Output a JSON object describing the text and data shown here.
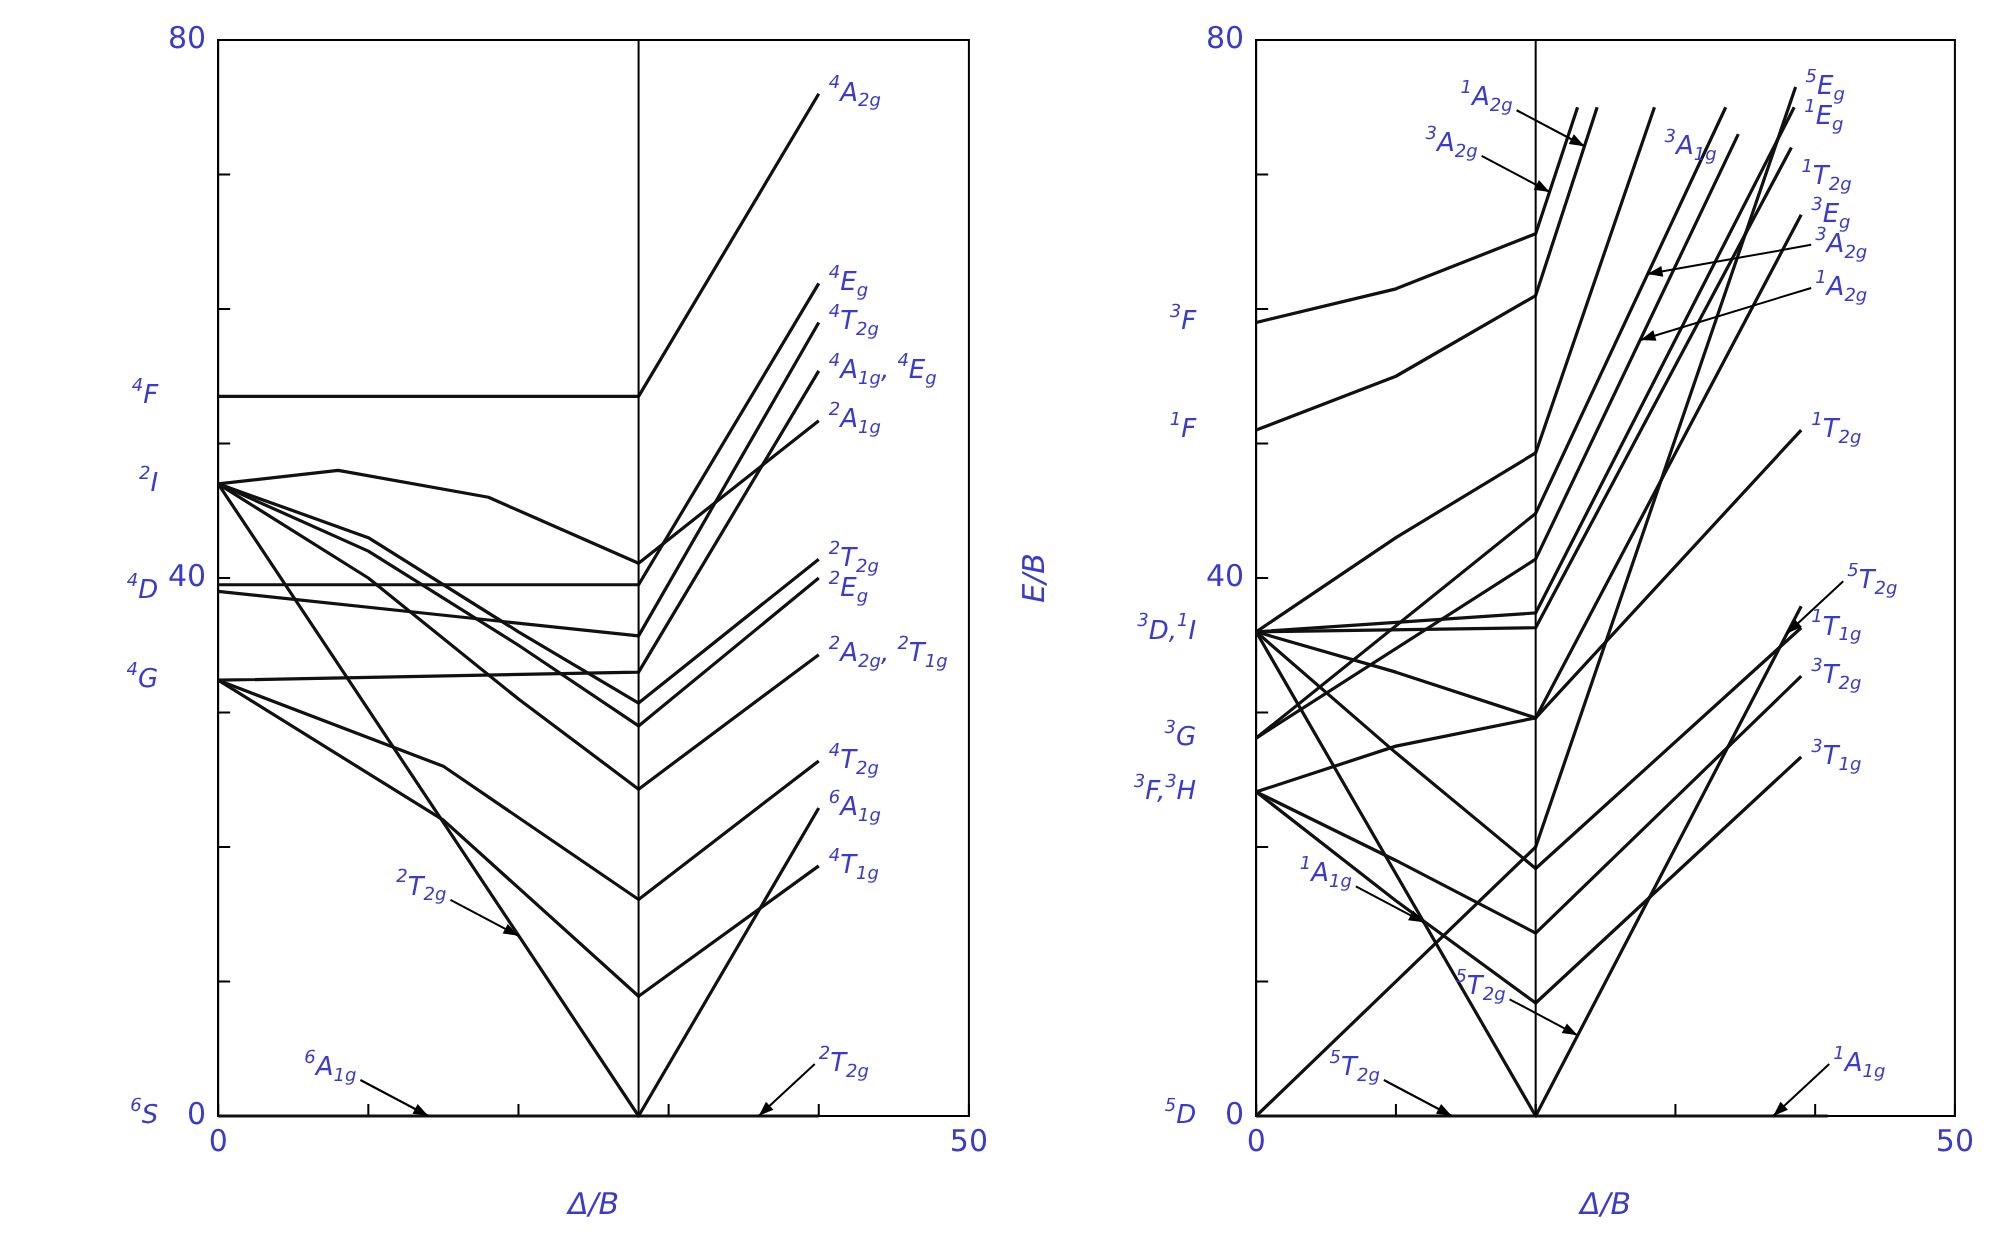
{
  "chart_data": [
    {
      "type": "line",
      "xlabel": "Δ/B",
      "xlim": [
        0,
        50
      ],
      "ylim": [
        0,
        80
      ],
      "xticks": [
        {
          "value": 0,
          "label": "0"
        },
        {
          "value": 10,
          "label": null
        },
        {
          "value": 20,
          "label": null
        },
        {
          "value": 30,
          "label": null
        },
        {
          "value": 40,
          "label": null
        },
        {
          "value": 50,
          "label": "50"
        }
      ],
      "yticks": [
        {
          "value": 0,
          "label": "0"
        },
        {
          "value": 10,
          "label": null
        },
        {
          "value": 20,
          "label": null
        },
        {
          "value": 30,
          "label": null
        },
        {
          "value": 40,
          "label": "40"
        },
        {
          "value": 50,
          "label": null
        },
        {
          "value": 60,
          "label": null
        },
        {
          "value": 70,
          "label": null
        },
        {
          "value": 80,
          "label": "80"
        }
      ],
      "marker": "none",
      "ref_lines": [
        {
          "axis": "x",
          "value": 28,
          "color": "#000000"
        }
      ],
      "series": [
        {
          "color": "#111111",
          "x": [
            0,
            28,
            40
          ],
          "values": [
            53.5,
            53.5,
            76
          ]
        },
        {
          "color": "#111111",
          "x": [
            0,
            8,
            18,
            28,
            40
          ],
          "values": [
            47,
            48,
            46,
            41.1,
            51.7
          ]
        },
        {
          "color": "#111111",
          "x": [
            0,
            28,
            40
          ],
          "values": [
            39.5,
            39.5,
            61.9
          ]
        },
        {
          "color": "#111111",
          "x": [
            0,
            28,
            40
          ],
          "values": [
            39,
            35.7,
            59
          ]
        },
        {
          "color": "#111111",
          "x": [
            0,
            28,
            40
          ],
          "values": [
            32.4,
            33,
            55.4
          ]
        },
        {
          "color": "#111111",
          "x": [
            0,
            10,
            20,
            28,
            40
          ],
          "values": [
            47,
            43,
            36,
            30.7,
            41.4
          ]
        },
        {
          "color": "#111111",
          "x": [
            0,
            10,
            20,
            28,
            40
          ],
          "values": [
            47,
            42,
            35,
            29,
            40
          ]
        },
        {
          "color": "#111111",
          "x": [
            0,
            10,
            20,
            28,
            40
          ],
          "values": [
            47,
            40,
            31,
            24.3,
            34.3
          ]
        },
        {
          "color": "#111111",
          "x": [
            0,
            15,
            28,
            40
          ],
          "values": [
            32.4,
            26,
            16.1,
            26.4
          ]
        },
        {
          "color": "#111111",
          "x": [
            0,
            15,
            28,
            40
          ],
          "values": [
            32.4,
            22,
            8.9,
            18.6
          ]
        },
        {
          "color": "#111111",
          "x": [
            0,
            28,
            40
          ],
          "values": [
            47,
            0,
            0
          ]
        },
        {
          "color": "#111111",
          "x": [
            0,
            28,
            40
          ],
          "values": [
            0,
            0,
            22.9
          ]
        }
      ],
      "annotations": [
        {
          "text": "$^{4}$F",
          "x": 0,
          "y": 53.5
        },
        {
          "text": "$^{2}$I",
          "x": 0,
          "y": 47
        },
        {
          "text": "$^{4}$D",
          "x": 0,
          "y": 39
        },
        {
          "text": "$^{4}$G",
          "x": 0,
          "y": 32.4
        },
        {
          "text": "$^{6}$S",
          "x": 0,
          "y": 0
        },
        {
          "text": "$^{4}$A$_{2g}$",
          "x": 40,
          "y": 76
        },
        {
          "text": "$^{4}$E$_{g}$",
          "x": 40,
          "y": 61.9
        },
        {
          "text": "$^{4}$T$_{2g}$",
          "x": 40,
          "y": 59
        },
        {
          "text": "$^{4}$A$_{1g}$, $^{4}$E$_{g}$",
          "x": 40,
          "y": 55.4
        },
        {
          "text": "$^{2}$A$_{1g}$",
          "x": 40,
          "y": 51.7
        },
        {
          "text": "$^{2}$T$_{2g}$",
          "x": 40,
          "y": 41.4
        },
        {
          "text": "$^{2}$E$_{g}$",
          "x": 40,
          "y": 40
        },
        {
          "text": "$^{2}$A$_{2g}$, $^{2}$T$_{1g}$",
          "x": 40,
          "y": 34.3
        },
        {
          "text": "$^{4}$T$_{2g}$",
          "x": 40,
          "y": 26.4
        },
        {
          "text": "$^{6}$A$_{1g}$",
          "x": 40,
          "y": 22.9
        },
        {
          "text": "$^{4}$T$_{1g}$",
          "x": 40,
          "y": 18.6
        },
        {
          "text": "$^{2}$T$_{2g}$",
          "x": 20,
          "y": 13.4
        },
        {
          "text": "$^{6}$A$_{1g}$",
          "x": 14,
          "y": 0
        },
        {
          "text": "$^{2}$T$_{2g}$",
          "x": 36,
          "y": 0
        }
      ]
    },
    {
      "type": "line",
      "xlabel": "Δ/B",
      "ylabel": "E/B",
      "xlim": [
        0,
        50
      ],
      "ylim": [
        0,
        80
      ],
      "xticks": [
        {
          "value": 0,
          "label": "0"
        },
        {
          "value": 10,
          "label": null
        },
        {
          "value": 20,
          "label": null
        },
        {
          "value": 30,
          "label": null
        },
        {
          "value": 40,
          "label": null
        },
        {
          "value": 50,
          "label": "50"
        }
      ],
      "yticks": [
        {
          "value": 0,
          "label": "0"
        },
        {
          "value": 10,
          "label": null
        },
        {
          "value": 20,
          "label": null
        },
        {
          "value": 30,
          "label": null
        },
        {
          "value": 40,
          "label": "40"
        },
        {
          "value": 50,
          "label": null
        },
        {
          "value": 60,
          "label": null
        },
        {
          "value": 70,
          "label": null
        },
        {
          "value": 80,
          "label": "80"
        }
      ],
      "marker": "none",
      "ref_lines": [
        {
          "axis": "x",
          "value": 20,
          "color": "#000000"
        }
      ],
      "series": [
        {
          "color": "#111111",
          "x": [
            0,
            10,
            20,
            23
          ],
          "values": [
            59,
            61.5,
            65.6,
            75
          ]
        },
        {
          "color": "#111111",
          "x": [
            0,
            10,
            20,
            24.4
          ],
          "values": [
            51,
            55,
            61,
            75
          ]
        },
        {
          "color": "#111111",
          "x": [
            0,
            10,
            20,
            28.5
          ],
          "values": [
            36,
            43,
            49.3,
            75
          ]
        },
        {
          "color": "#111111",
          "x": [
            0,
            20,
            33.6
          ],
          "values": [
            28.1,
            44.8,
            75
          ]
        },
        {
          "color": "#111111",
          "x": [
            0,
            20,
            34.5
          ],
          "values": [
            28.1,
            41.4,
            73
          ]
        },
        {
          "color": "#111111",
          "x": [
            0,
            20,
            38.6
          ],
          "values": [
            0,
            20,
            76.5
          ]
        },
        {
          "color": "#111111",
          "x": [
            0,
            20,
            38.5
          ],
          "values": [
            36,
            37.4,
            75
          ]
        },
        {
          "color": "#111111",
          "x": [
            0,
            20,
            38.3
          ],
          "values": [
            36,
            36.3,
            72
          ]
        },
        {
          "color": "#111111",
          "x": [
            0,
            10,
            20,
            39
          ],
          "values": [
            24.1,
            27.5,
            29.6,
            67
          ]
        },
        {
          "color": "#111111",
          "x": [
            0,
            10,
            20,
            39
          ],
          "values": [
            36,
            33,
            29.6,
            51
          ]
        },
        {
          "color": "#111111",
          "x": [
            0,
            10,
            20,
            39
          ],
          "values": [
            36,
            27,
            18.4,
            36.3
          ]
        },
        {
          "color": "#111111",
          "x": [
            0,
            10,
            20,
            39
          ],
          "values": [
            24.1,
            19,
            13.6,
            32.7
          ]
        },
        {
          "color": "#111111",
          "x": [
            0,
            10,
            20,
            39
          ],
          "values": [
            24.1,
            16,
            8.4,
            26.7
          ]
        },
        {
          "color": "#111111",
          "x": [
            0,
            20,
            40.9
          ],
          "values": [
            36,
            0,
            0
          ]
        },
        {
          "color": "#111111",
          "x": [
            0,
            20,
            39
          ],
          "values": [
            0,
            0,
            37.9
          ]
        }
      ],
      "annotations": [
        {
          "text": "$^{3}$F",
          "x": 0,
          "y": 59
        },
        {
          "text": "$^{1}$F",
          "x": 0,
          "y": 51
        },
        {
          "text": "$^{3}$D,$^{1}$I",
          "x": 0,
          "y": 36
        },
        {
          "text": "$^{3}$G",
          "x": 0,
          "y": 28.1
        },
        {
          "text": "$^{3}$F,$^{3}$H",
          "x": 0,
          "y": 24.1
        },
        {
          "text": "$^{5}$D",
          "x": 0,
          "y": 0
        },
        {
          "text": "$^{5}$E$_{g}$",
          "x": 38.6,
          "y": 76.5
        },
        {
          "text": "$^{1}$E$_{g}$",
          "x": 38.5,
          "y": 75
        },
        {
          "text": "$^{1}$T$_{2g}$",
          "x": 38.3,
          "y": 72
        },
        {
          "text": "$^{3}$E$_{g}$",
          "x": 39,
          "y": 67
        },
        {
          "text": "$^{1}$T$_{2g}$",
          "x": 39,
          "y": 51
        },
        {
          "text": "$^{1}$T$_{1g}$",
          "x": 39,
          "y": 36.3
        },
        {
          "text": "$^{3}$T$_{2g}$",
          "x": 39,
          "y": 32.7
        },
        {
          "text": "$^{3}$T$_{1g}$",
          "x": 39,
          "y": 26.7
        },
        {
          "text": "$^{3}$A$_{1g}$",
          "x": 28.5,
          "y": 75
        },
        {
          "text": "$^{1}$A$_{2g}$",
          "x": 23.5,
          "y": 72.1
        },
        {
          "text": "$^{3}$A$_{2g}$",
          "x": 21,
          "y": 68.7
        },
        {
          "text": "$^{3}$A$_{2g}$",
          "x": 28,
          "y": 62.6
        },
        {
          "text": "$^{1}$A$_{2g}$",
          "x": 27.5,
          "y": 57.7
        },
        {
          "text": "$^{5}$T$_{2g}$",
          "x": 38,
          "y": 35.9
        },
        {
          "text": "$^{5}$T$_{2g}$",
          "x": 23,
          "y": 6
        },
        {
          "text": "$^{1}$A$_{1g}$",
          "x": 12,
          "y": 14.4
        },
        {
          "text": "$^{5}$T$_{2g}$",
          "x": 14,
          "y": 0
        },
        {
          "text": "$^{1}$A$_{1g}$",
          "x": 37,
          "y": 0
        }
      ]
    }
  ]
}
